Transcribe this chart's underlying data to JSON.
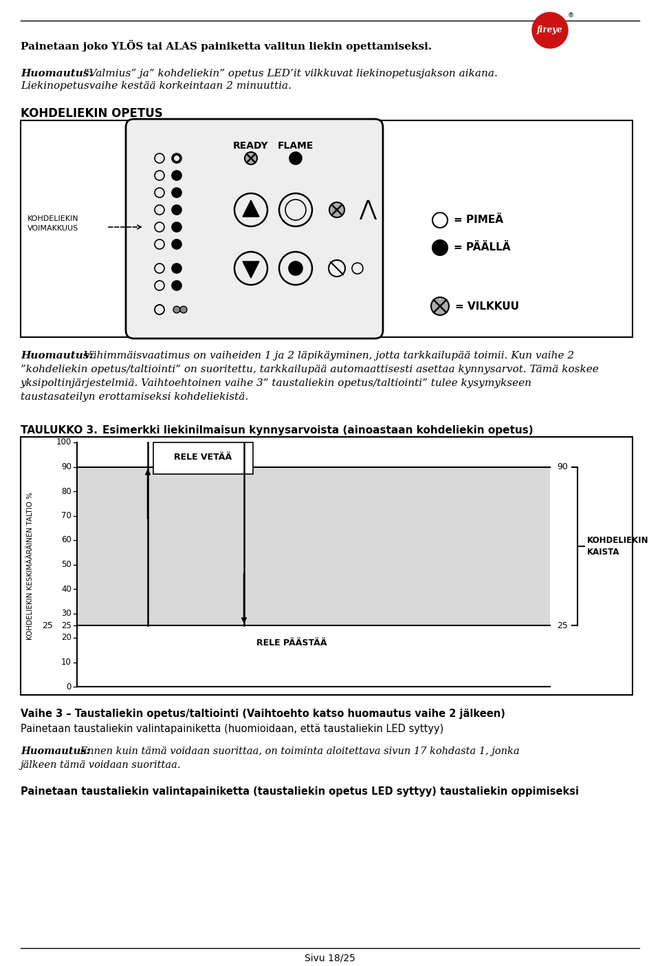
{
  "page_width": 9.6,
  "page_height": 14.04,
  "dpi": 100,
  "background_color": "#ffffff",
  "top_text_bold": "Painetaan joko YLÖS tai ALAS painiketta valitun liekin opettamiseksi.",
  "note1_label": "Huomautus:",
  "note1_rest": " ”Valmius” ja” kohdeliekin” opetus LED’it vilkkuvat liekinopetusjakson aikana.",
  "note1_line2": "Liekinopetusvaihe kestää korkeintaan 2 minuuttia.",
  "section_title": "KOHDELIEKIN OPETUS",
  "left_label_line1": "KOHDELIEKIN",
  "left_label_line2": "VOIMAKKUUS",
  "ready_label": "READY",
  "flame_label": "FLAME",
  "legend_pimea": "= PIMEÄ",
  "legend_paalla": "= PÄÄLLÄ",
  "legend_vilkkuu": "= VILKKUU",
  "note2_label": "Huomautus:",
  "note2_line1": " Vähimmäisvaatimus on vaiheiden 1 ja 2 läpikäyminen, jotta tarkkailupää toimii. Kun vaihe 2",
  "note2_line2": "”kohdeliekin opetus/taltiointi” on suoritettu, tarkkailupää automaattisesti asettaa kynnysarvot. Tämä koskee",
  "note2_line3": "yksipoltinjärjestelmiä. Vaihtoehtoinen vaihe 3” taustaliekin opetus/taltiointi” tulee kysymykseen",
  "note2_line4": "taustasateilyn erottamiseksi kohdeliekistä.",
  "table_title_bold": "TAULUKKO 3.",
  "table_title_text": "    Esimerkki liekinilmaisun kynnysarvoista (ainoastaan kohdeliekin opetus)",
  "chart_ylabel": "KOHDELIEKIN KESKIMÄÄRÄINEN TALTIO %",
  "chart_yticks": [
    0,
    10,
    20,
    25,
    30,
    40,
    50,
    60,
    70,
    80,
    90,
    100
  ],
  "chart_upper_threshold": 90,
  "chart_lower_threshold": 25,
  "chart_fill_color": "#d9d9d9",
  "chart_arrow_up_label": "RELE VETÄÄ",
  "chart_arrow_down_label": "RELE PÄÄSTÄÄ",
  "chart_right_annotation": "KOHDELIEKIN\nKAISTA",
  "vaihe3_title_bold": "Vaihe 3 – Taustaliekin opetus/taltiointi (Vaihtoehto katso huomautus vaihe 2 jälkeen)",
  "vaihe3_text": "Painetaan taustaliekin valintapainiketta (huomioidaan, että taustaliekin LED syttyy)",
  "note3_label": "Huomautus:",
  "note3_rest": " Ennen kuin tämä voidaan suorittaa, on toiminta aloitettava sivun 17 kohdasta 1, jonka",
  "note3_line2": "jälkeen tämä voidaan suorittaa.",
  "bottom_bold_text": "Painetaan taustaliekin valintapainiketta (taustaliekin opetus LED syttyy) taustaliekin oppimiseksi",
  "footer_text": "Sivu 18/25"
}
